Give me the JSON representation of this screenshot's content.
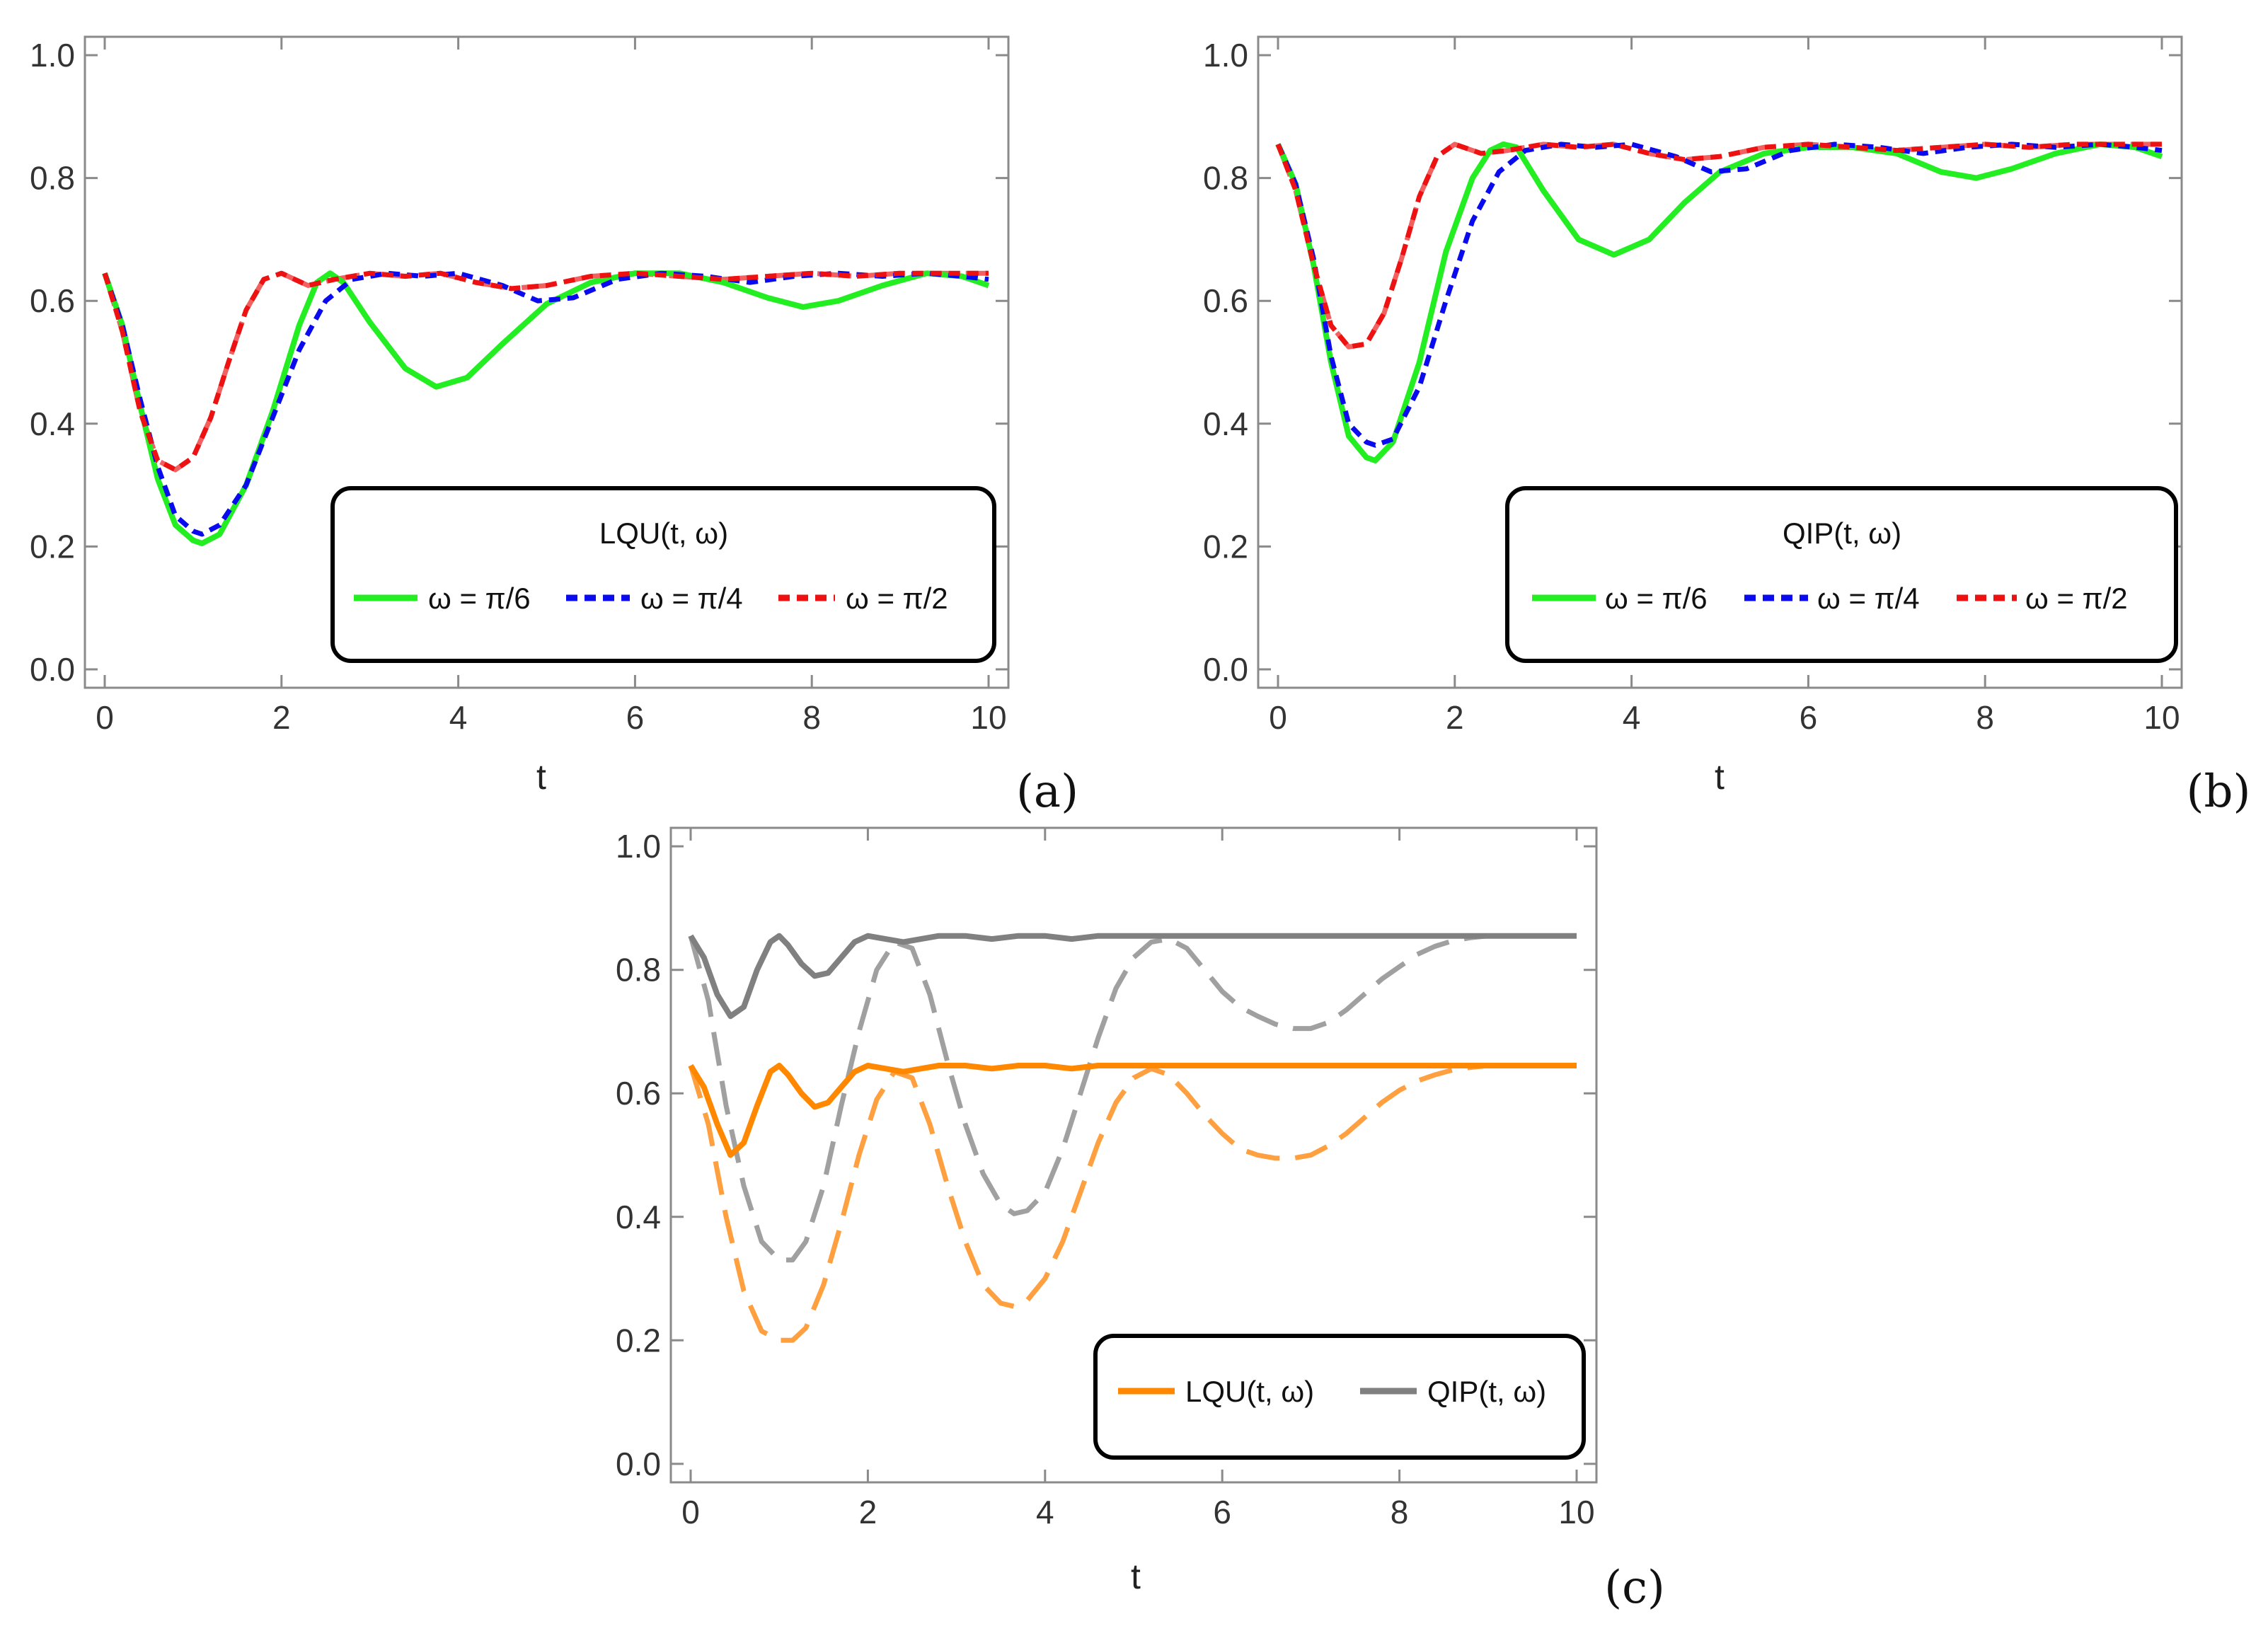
{
  "chart_data": [
    {
      "panel_label": "(a)",
      "type": "line",
      "title": "",
      "xlabel": "t",
      "ylabel": "",
      "xlim": [
        0,
        10
      ],
      "ylim": [
        -0.03,
        1.03
      ],
      "xticks": [
        "0",
        "2",
        "4",
        "6",
        "8",
        "10"
      ],
      "yticks": [
        "0.0",
        "0.2",
        "0.4",
        "0.6",
        "0.8",
        "1.0"
      ],
      "legend_title": "LQU(t, ω)",
      "legend_position": "bottom-right",
      "series": [
        {
          "name": "ω = π/6",
          "color": "#22ee22",
          "dash": "solid",
          "x": [
            0,
            0.2,
            0.4,
            0.6,
            0.8,
            1.0,
            1.1,
            1.3,
            1.6,
            1.9,
            2.2,
            2.4,
            2.55,
            2.7,
            3.0,
            3.4,
            3.75,
            4.1,
            4.5,
            5.0,
            5.5,
            6.0,
            6.5,
            7.0,
            7.5,
            7.9,
            8.3,
            8.8,
            9.3,
            9.7,
            10
          ],
          "y": [
            0.645,
            0.56,
            0.43,
            0.31,
            0.235,
            0.21,
            0.205,
            0.22,
            0.3,
            0.42,
            0.56,
            0.63,
            0.645,
            0.63,
            0.565,
            0.49,
            0.46,
            0.475,
            0.53,
            0.595,
            0.63,
            0.645,
            0.645,
            0.63,
            0.605,
            0.59,
            0.6,
            0.625,
            0.645,
            0.64,
            0.625
          ]
        },
        {
          "name": "ω = π/4",
          "color": "#0a0aee",
          "dash": "short-dash",
          "x": [
            0,
            0.2,
            0.4,
            0.6,
            0.8,
            1.0,
            1.1,
            1.3,
            1.6,
            1.9,
            2.2,
            2.5,
            2.8,
            3.2,
            3.6,
            4.0,
            4.5,
            4.9,
            5.3,
            5.8,
            6.3,
            6.8,
            7.3,
            7.8,
            8.3,
            8.8,
            9.3,
            9.7,
            10
          ],
          "y": [
            0.645,
            0.56,
            0.44,
            0.33,
            0.25,
            0.225,
            0.22,
            0.235,
            0.3,
            0.41,
            0.52,
            0.6,
            0.635,
            0.645,
            0.64,
            0.645,
            0.625,
            0.6,
            0.605,
            0.635,
            0.645,
            0.64,
            0.63,
            0.64,
            0.645,
            0.64,
            0.645,
            0.64,
            0.635
          ]
        },
        {
          "name": "ω = π/2",
          "color": "#ee1111",
          "dash": "short-dash",
          "x": [
            0,
            0.2,
            0.4,
            0.6,
            0.8,
            1.0,
            1.2,
            1.4,
            1.6,
            1.8,
            2.0,
            2.3,
            2.6,
            3.0,
            3.4,
            3.8,
            4.2,
            4.6,
            5.0,
            5.5,
            6.0,
            6.5,
            7.0,
            7.5,
            8.0,
            8.5,
            9.0,
            9.5,
            10
          ],
          "y": [
            0.645,
            0.55,
            0.42,
            0.34,
            0.325,
            0.345,
            0.41,
            0.5,
            0.585,
            0.635,
            0.645,
            0.625,
            0.635,
            0.645,
            0.64,
            0.645,
            0.63,
            0.62,
            0.625,
            0.64,
            0.645,
            0.64,
            0.635,
            0.64,
            0.645,
            0.64,
            0.645,
            0.645,
            0.645
          ]
        }
      ],
      "overlay_series": [
        {
          "name": "",
          "color": "#f26060",
          "dash": "long-dash",
          "x": [
            0,
            0.2,
            0.4,
            0.6,
            0.8,
            1.0,
            1.2,
            1.4,
            1.6,
            1.8,
            2.0,
            2.3,
            2.6,
            3.0,
            3.4,
            3.8,
            4.2,
            4.6,
            5.0,
            5.5,
            6.0,
            6.5,
            7.0,
            7.5,
            8.0,
            8.5,
            9.0,
            9.5,
            10
          ],
          "y": [
            0.645,
            0.55,
            0.42,
            0.34,
            0.325,
            0.345,
            0.41,
            0.5,
            0.585,
            0.635,
            0.645,
            0.625,
            0.635,
            0.645,
            0.64,
            0.645,
            0.63,
            0.62,
            0.625,
            0.64,
            0.645,
            0.64,
            0.635,
            0.64,
            0.645,
            0.64,
            0.645,
            0.645,
            0.645
          ]
        }
      ]
    },
    {
      "panel_label": "(b)",
      "type": "line",
      "title": "",
      "xlabel": "t",
      "ylabel": "",
      "xlim": [
        0,
        10
      ],
      "ylim": [
        -0.03,
        1.03
      ],
      "xticks": [
        "0",
        "2",
        "4",
        "6",
        "8",
        "10"
      ],
      "yticks": [
        "0.0",
        "0.2",
        "0.4",
        "0.6",
        "0.8",
        "1.0"
      ],
      "legend_title": "QIP(t, ω)",
      "legend_position": "bottom-right",
      "series": [
        {
          "name": "ω = π/6",
          "color": "#22ee22",
          "dash": "solid",
          "x": [
            0,
            0.2,
            0.4,
            0.6,
            0.8,
            1.0,
            1.1,
            1.3,
            1.6,
            1.9,
            2.2,
            2.4,
            2.55,
            2.7,
            3.0,
            3.4,
            3.8,
            4.2,
            4.6,
            5.0,
            5.5,
            6.0,
            6.5,
            7.0,
            7.5,
            7.9,
            8.3,
            8.8,
            9.3,
            9.7,
            10
          ],
          "y": [
            0.855,
            0.79,
            0.66,
            0.5,
            0.38,
            0.345,
            0.34,
            0.37,
            0.5,
            0.68,
            0.8,
            0.845,
            0.855,
            0.85,
            0.78,
            0.7,
            0.675,
            0.7,
            0.76,
            0.81,
            0.84,
            0.85,
            0.85,
            0.84,
            0.81,
            0.8,
            0.815,
            0.84,
            0.855,
            0.85,
            0.835
          ]
        },
        {
          "name": "ω = π/4",
          "color": "#0a0aee",
          "dash": "short-dash",
          "x": [
            0,
            0.2,
            0.4,
            0.6,
            0.8,
            1.0,
            1.1,
            1.3,
            1.6,
            1.9,
            2.2,
            2.5,
            2.8,
            3.2,
            3.6,
            4.0,
            4.5,
            4.9,
            5.3,
            5.8,
            6.3,
            6.8,
            7.3,
            7.8,
            8.3,
            8.8,
            9.3,
            9.7,
            10
          ],
          "y": [
            0.855,
            0.79,
            0.67,
            0.51,
            0.4,
            0.37,
            0.365,
            0.375,
            0.46,
            0.6,
            0.73,
            0.81,
            0.845,
            0.855,
            0.85,
            0.855,
            0.835,
            0.81,
            0.815,
            0.845,
            0.855,
            0.85,
            0.84,
            0.85,
            0.855,
            0.85,
            0.855,
            0.85,
            0.845
          ]
        },
        {
          "name": "ω = π/2",
          "color": "#ee1111",
          "dash": "short-dash",
          "x": [
            0,
            0.2,
            0.4,
            0.6,
            0.8,
            1.0,
            1.2,
            1.4,
            1.6,
            1.8,
            2.0,
            2.3,
            2.6,
            3.0,
            3.4,
            3.8,
            4.2,
            4.6,
            5.0,
            5.5,
            6.0,
            6.5,
            7.0,
            7.5,
            8.0,
            8.5,
            9.0,
            9.5,
            10
          ],
          "y": [
            0.855,
            0.78,
            0.66,
            0.56,
            0.525,
            0.53,
            0.58,
            0.67,
            0.77,
            0.835,
            0.855,
            0.84,
            0.845,
            0.855,
            0.85,
            0.855,
            0.84,
            0.83,
            0.835,
            0.85,
            0.855,
            0.85,
            0.845,
            0.85,
            0.855,
            0.85,
            0.855,
            0.855,
            0.855
          ]
        }
      ],
      "overlay_series": [
        {
          "name": "",
          "color": "#f26060",
          "dash": "long-dash",
          "x": [
            0,
            0.2,
            0.4,
            0.6,
            0.8,
            1.0,
            1.2,
            1.4,
            1.6,
            1.8,
            2.0,
            2.3,
            2.6,
            3.0,
            3.4,
            3.8,
            4.2,
            4.6,
            5.0,
            5.5,
            6.0,
            6.5,
            7.0,
            7.5,
            8.0,
            8.5,
            9.0,
            9.5,
            10
          ],
          "y": [
            0.855,
            0.78,
            0.66,
            0.56,
            0.525,
            0.53,
            0.58,
            0.67,
            0.77,
            0.835,
            0.855,
            0.84,
            0.845,
            0.855,
            0.85,
            0.855,
            0.84,
            0.83,
            0.835,
            0.85,
            0.855,
            0.85,
            0.845,
            0.85,
            0.855,
            0.85,
            0.855,
            0.855,
            0.855
          ]
        }
      ]
    },
    {
      "panel_label": "(c)",
      "type": "line",
      "title": "",
      "xlabel": "t",
      "ylabel": "",
      "xlim": [
        0,
        10
      ],
      "ylim": [
        -0.03,
        1.03
      ],
      "xticks": [
        "0",
        "2",
        "4",
        "6",
        "8",
        "10"
      ],
      "yticks": [
        "0.0",
        "0.2",
        "0.4",
        "0.6",
        "0.8",
        "1.0"
      ],
      "legend_title": "",
      "legend_position": "bottom-right",
      "series": [
        {
          "name": "LQU(t, ω)",
          "color": "#ff8800",
          "dash": "solid",
          "x": [
            0,
            0.15,
            0.3,
            0.45,
            0.6,
            0.75,
            0.9,
            1.0,
            1.1,
            1.25,
            1.4,
            1.55,
            1.7,
            1.85,
            2.0,
            2.2,
            2.4,
            2.6,
            2.8,
            3.1,
            3.4,
            3.7,
            4.0,
            4.3,
            4.6,
            5.0,
            5.5,
            6.0,
            6.5,
            7.0,
            7.5,
            8.0,
            8.5,
            9.0,
            9.5,
            10
          ],
          "y": [
            0.645,
            0.61,
            0.55,
            0.5,
            0.52,
            0.58,
            0.635,
            0.645,
            0.63,
            0.6,
            0.578,
            0.585,
            0.61,
            0.635,
            0.645,
            0.64,
            0.635,
            0.64,
            0.645,
            0.645,
            0.64,
            0.645,
            0.645,
            0.64,
            0.645,
            0.645,
            0.645,
            0.645,
            0.645,
            0.645,
            0.645,
            0.645,
            0.645,
            0.645,
            0.645,
            0.645
          ]
        },
        {
          "name": "QIP(t, ω)",
          "color": "#808080",
          "dash": "solid",
          "x": [
            0,
            0.15,
            0.3,
            0.45,
            0.6,
            0.75,
            0.9,
            1.0,
            1.1,
            1.25,
            1.4,
            1.55,
            1.7,
            1.85,
            2.0,
            2.2,
            2.4,
            2.6,
            2.8,
            3.1,
            3.4,
            3.7,
            4.0,
            4.3,
            4.6,
            5.0,
            5.5,
            6.0,
            6.5,
            7.0,
            7.5,
            8.0,
            8.5,
            9.0,
            9.5,
            10
          ],
          "y": [
            0.855,
            0.82,
            0.76,
            0.725,
            0.74,
            0.8,
            0.845,
            0.855,
            0.84,
            0.81,
            0.79,
            0.795,
            0.82,
            0.845,
            0.855,
            0.85,
            0.845,
            0.85,
            0.855,
            0.855,
            0.85,
            0.855,
            0.855,
            0.85,
            0.855,
            0.855,
            0.855,
            0.855,
            0.855,
            0.855,
            0.855,
            0.855,
            0.855,
            0.855,
            0.855,
            0.855
          ]
        }
      ],
      "overlay_series": [
        {
          "name": "",
          "color": "#ffa040",
          "dash": "long-dash",
          "x": [
            0,
            0.2,
            0.4,
            0.6,
            0.8,
            1.0,
            1.15,
            1.3,
            1.5,
            1.7,
            1.9,
            2.1,
            2.3,
            2.5,
            2.7,
            2.9,
            3.1,
            3.3,
            3.5,
            3.65,
            3.8,
            4.0,
            4.2,
            4.4,
            4.6,
            4.8,
            5.0,
            5.2,
            5.4,
            5.6,
            5.8,
            6.0,
            6.2,
            6.4,
            6.6,
            6.8,
            7.0,
            7.2,
            7.4,
            7.6,
            7.8,
            8.0,
            8.2,
            8.4,
            8.6,
            8.8,
            9.0
          ],
          "y": [
            0.645,
            0.55,
            0.4,
            0.28,
            0.215,
            0.2,
            0.2,
            0.22,
            0.29,
            0.39,
            0.5,
            0.59,
            0.635,
            0.625,
            0.55,
            0.45,
            0.36,
            0.29,
            0.26,
            0.255,
            0.265,
            0.3,
            0.36,
            0.44,
            0.52,
            0.585,
            0.625,
            0.64,
            0.63,
            0.6,
            0.565,
            0.535,
            0.51,
            0.5,
            0.495,
            0.495,
            0.5,
            0.515,
            0.535,
            0.56,
            0.585,
            0.605,
            0.62,
            0.63,
            0.638,
            0.642,
            0.645
          ]
        },
        {
          "name": "",
          "color": "#a0a0a0",
          "dash": "long-dash",
          "x": [
            0,
            0.2,
            0.4,
            0.6,
            0.8,
            1.0,
            1.15,
            1.3,
            1.5,
            1.7,
            1.9,
            2.1,
            2.3,
            2.5,
            2.7,
            2.9,
            3.1,
            3.3,
            3.5,
            3.65,
            3.8,
            4.0,
            4.2,
            4.4,
            4.6,
            4.8,
            5.0,
            5.2,
            5.4,
            5.6,
            5.8,
            6.0,
            6.2,
            6.4,
            6.6,
            6.8,
            7.0,
            7.2,
            7.4,
            7.6,
            7.8,
            8.0,
            8.2,
            8.4,
            8.6,
            8.8,
            9.0
          ],
          "y": [
            0.855,
            0.75,
            0.58,
            0.45,
            0.36,
            0.33,
            0.33,
            0.36,
            0.45,
            0.58,
            0.7,
            0.8,
            0.845,
            0.835,
            0.76,
            0.65,
            0.55,
            0.47,
            0.42,
            0.405,
            0.41,
            0.44,
            0.51,
            0.6,
            0.69,
            0.77,
            0.82,
            0.845,
            0.85,
            0.835,
            0.8,
            0.765,
            0.74,
            0.725,
            0.712,
            0.705,
            0.705,
            0.715,
            0.735,
            0.76,
            0.785,
            0.805,
            0.825,
            0.838,
            0.847,
            0.852,
            0.855
          ]
        }
      ]
    }
  ]
}
